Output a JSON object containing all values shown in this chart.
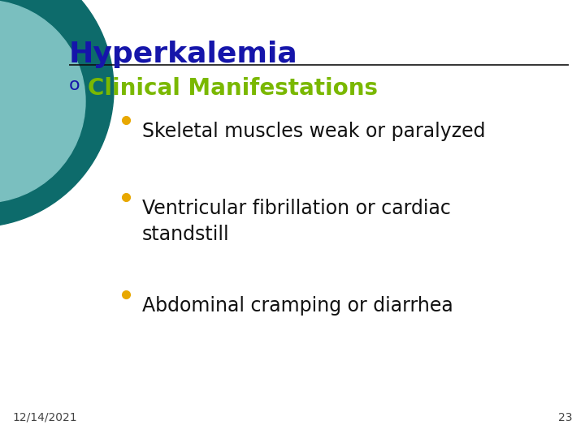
{
  "title": "Hyperkalemia",
  "title_color": "#1515aa",
  "title_fontsize": 26,
  "date": "12/14/2021",
  "page_number": "23",
  "section_bullet": "o",
  "section_text": "Clinical Manifestations",
  "section_color": "#7ab800",
  "section_fontsize": 20,
  "section_bullet_color": "#1515aa",
  "bullet_color": "#e8a800",
  "bullet_char": "●",
  "items": [
    "Skeletal muscles weak or paralyzed",
    "Ventricular fibrillation or cardiac\nstandstill",
    "Abdominal cramping or diarrhea"
  ],
  "item_fontsize": 17,
  "item_color": "#111111",
  "bg_color": "#ffffff",
  "line_color": "#111111",
  "footer_fontsize": 10,
  "footer_color": "#444444",
  "circle_color1": "#0d6b6b",
  "circle_color2": "#7abfbf"
}
